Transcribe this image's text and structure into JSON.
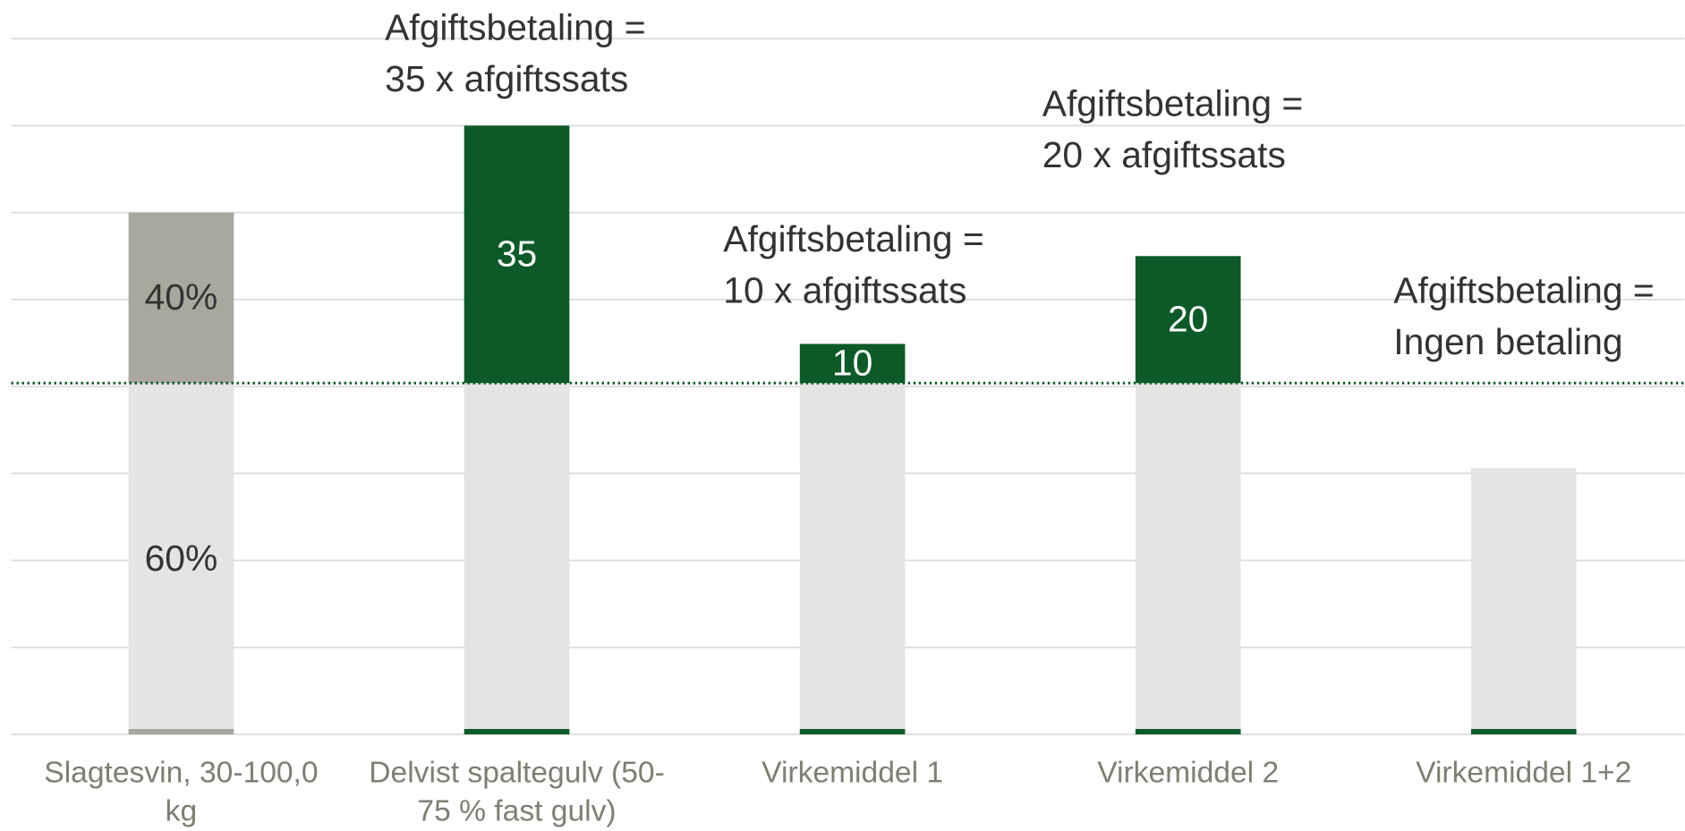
{
  "chart_data": {
    "type": "stacked_bar",
    "categories": [
      [
        "Slagtesvin, 30-100,0",
        "kg"
      ],
      [
        "Delvist spaltegulv (50-",
        "75 % fast gulv)"
      ],
      [
        "Virkemiddel 1"
      ],
      [
        "Virkemiddel 2"
      ],
      [
        "Virkemiddel 1+2"
      ]
    ],
    "series": [
      {
        "color": "#e4e4e2",
        "values": [
          4.04,
          4.04,
          4.04,
          4.04,
          3.06
        ],
        "value_labels": [
          "60%",
          null,
          null,
          null,
          null
        ],
        "label_color": "#333333"
      },
      {
        "colors": [
          "#a8a89e",
          "#0b5a27",
          "#0b5a27",
          "#0b5a27",
          "#0b5a27"
        ],
        "values": [
          1.96,
          2.96,
          0.45,
          1.46,
          null
        ],
        "value_labels": [
          "40%",
          "35",
          "10",
          "20",
          null
        ],
        "label_colors": [
          "#333333",
          "#ffffff",
          "#ffffff",
          "#ffffff",
          null
        ]
      }
    ],
    "base_colors": [
      "#a8a89e",
      "#0b5a27",
      "#0b5a27",
      "#0b5a27",
      "#0b5a27"
    ],
    "threshold": 4.04,
    "threshold_color": "#0b5a27",
    "annotations": [
      {
        "category": 1,
        "lines": [
          "Afgiftsbetaling =",
          "35 x afgiftssats"
        ]
      },
      {
        "category": 2,
        "lines": [
          "Afgiftsbetaling =",
          "10 x afgiftssats"
        ]
      },
      {
        "category": 3,
        "lines": [
          "Afgiftsbetaling =",
          "20 x afgiftssats"
        ]
      },
      {
        "category": 4,
        "lines": [
          "Afgiftsbetaling =",
          "Ingen betaling"
        ]
      }
    ],
    "ylim": [
      0,
      8
    ],
    "yticks": [
      0,
      1,
      2,
      3,
      4,
      5,
      6,
      7,
      8
    ],
    "grid": true
  }
}
